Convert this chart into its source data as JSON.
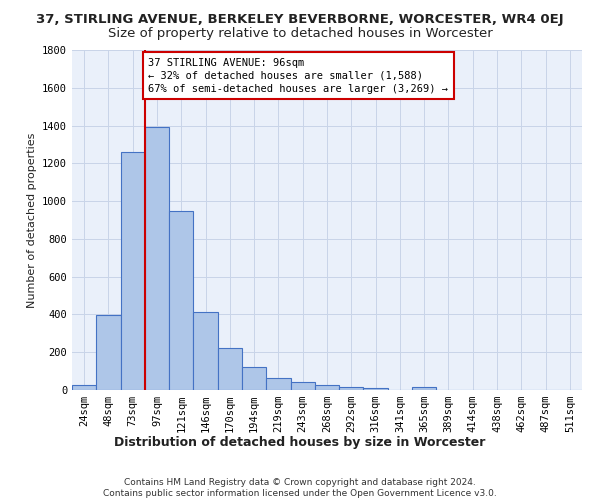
{
  "title": "37, STIRLING AVENUE, BERKELEY BEVERBORNE, WORCESTER, WR4 0EJ",
  "subtitle": "Size of property relative to detached houses in Worcester",
  "xlabel": "Distribution of detached houses by size in Worcester",
  "ylabel": "Number of detached properties",
  "categories": [
    "24sqm",
    "48sqm",
    "73sqm",
    "97sqm",
    "121sqm",
    "146sqm",
    "170sqm",
    "194sqm",
    "219sqm",
    "243sqm",
    "268sqm",
    "292sqm",
    "316sqm",
    "341sqm",
    "365sqm",
    "389sqm",
    "414sqm",
    "438sqm",
    "462sqm",
    "487sqm",
    "511sqm"
  ],
  "values": [
    25,
    395,
    1260,
    1390,
    950,
    415,
    225,
    120,
    65,
    40,
    25,
    15,
    10,
    0,
    15,
    0,
    0,
    0,
    0,
    0,
    0
  ],
  "bar_color": "#aec6e8",
  "bar_edge_color": "#4472c4",
  "grid_color": "#c8d4e8",
  "background_color": "#eaf0fa",
  "vline_color": "#cc0000",
  "annotation_text": "37 STIRLING AVENUE: 96sqm\n← 32% of detached houses are smaller (1,588)\n67% of semi-detached houses are larger (3,269) →",
  "annotation_box_color": "#cc0000",
  "ylim": [
    0,
    1800
  ],
  "yticks": [
    0,
    200,
    400,
    600,
    800,
    1000,
    1200,
    1400,
    1600,
    1800
  ],
  "footer_text": "Contains HM Land Registry data © Crown copyright and database right 2024.\nContains public sector information licensed under the Open Government Licence v3.0.",
  "title_fontsize": 9.5,
  "subtitle_fontsize": 9.5,
  "xlabel_fontsize": 9,
  "ylabel_fontsize": 8,
  "tick_fontsize": 7.5,
  "annotation_fontsize": 7.5,
  "footer_fontsize": 6.5
}
